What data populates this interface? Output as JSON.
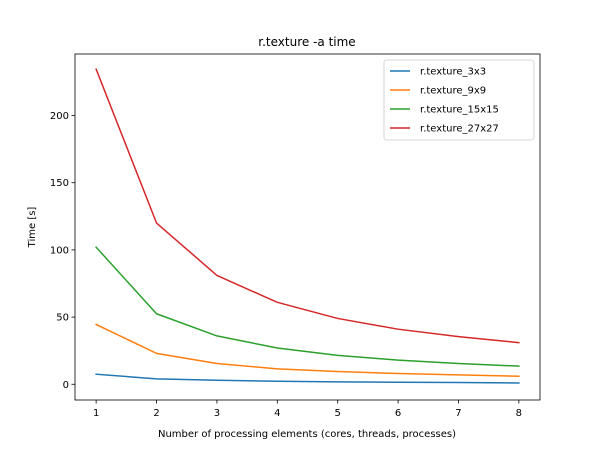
{
  "chart_data": {
    "type": "line",
    "title": "r.texture -a time",
    "xlabel": "Number of processing elements (cores, threads, processes)",
    "ylabel": "Time [s]",
    "x": [
      1,
      2,
      3,
      4,
      5,
      6,
      7,
      8
    ],
    "xticks": [
      "1",
      "2",
      "3",
      "4",
      "5",
      "6",
      "7",
      "8"
    ],
    "yticks": [
      "0",
      "50",
      "100",
      "150",
      "200"
    ],
    "xlim": [
      0.65,
      8.35
    ],
    "ylim": [
      -11.7,
      245.8
    ],
    "grid": false,
    "legend_position": "upper right",
    "series": [
      {
        "name": "r.texture_3x3",
        "color": "#1f77b4",
        "values": [
          7.5,
          4.0,
          3.0,
          2.3,
          1.8,
          1.5,
          1.3,
          1.0
        ]
      },
      {
        "name": "r.texture_9x9",
        "color": "#ff7f0e",
        "values": [
          44.5,
          23.0,
          15.5,
          11.5,
          9.5,
          8.0,
          7.0,
          6.0
        ]
      },
      {
        "name": "r.texture_15x15",
        "color": "#2ca02c",
        "values": [
          102.0,
          52.5,
          36.0,
          27.0,
          21.5,
          18.0,
          15.5,
          13.5
        ]
      },
      {
        "name": "r.texture_27x27",
        "color": "#d62728",
        "values": [
          234.5,
          120.0,
          81.0,
          61.0,
          49.0,
          41.0,
          35.5,
          31.0
        ]
      }
    ]
  }
}
